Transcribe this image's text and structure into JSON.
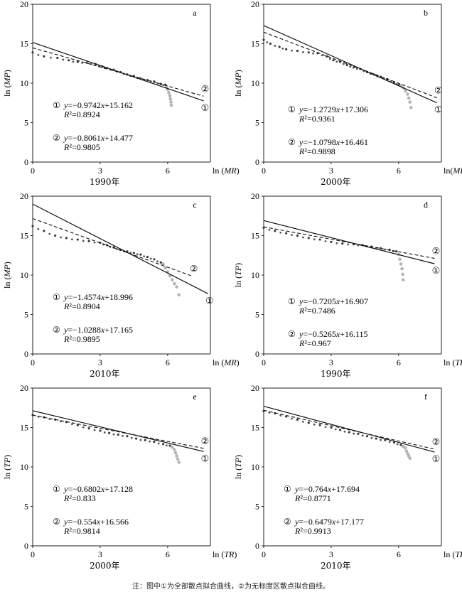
{
  "figure_note": "注：图中①为全部散点拟合曲线，②为无标度区散点拟合曲线。",
  "chart_data": [
    {
      "type": "scatter",
      "panel_label": "a",
      "year_label": "1990年",
      "xlabel": "ln (MR)",
      "ylabel": "ln (MP)",
      "xlim": [
        0,
        7.9
      ],
      "ylim": [
        0,
        20
      ],
      "x_ticks": [
        "0",
        "3",
        "6"
      ],
      "y_ticks": [
        "0",
        "5",
        "10",
        "15",
        "20"
      ],
      "series": [
        {
          "marker": "①",
          "style": "solid",
          "slope": -0.9742,
          "intercept": 15.162,
          "x_range": [
            0,
            7.6
          ]
        },
        {
          "marker": "②",
          "style": "dashed",
          "slope": -0.8061,
          "intercept": 14.477,
          "x_range": [
            0,
            7.6
          ]
        }
      ],
      "equations": [
        {
          "id": "①",
          "eq": "y=−0.9742x+15.162",
          "r2": "R²=0.8924"
        },
        {
          "id": "②",
          "eq": "y=−0.8061x+14.477",
          "r2": "R²=0.9805"
        }
      ],
      "dark_scatter": [
        [
          0.0,
          13.9
        ],
        [
          0.5,
          13.4
        ],
        [
          1.1,
          13.2
        ],
        [
          1.6,
          12.9
        ],
        [
          2.0,
          12.7
        ],
        [
          2.4,
          12.6
        ],
        [
          2.8,
          12.4
        ],
        [
          3.1,
          12.1
        ],
        [
          3.3,
          11.9
        ],
        [
          3.6,
          11.7
        ],
        [
          3.9,
          11.4
        ],
        [
          4.2,
          11.1
        ],
        [
          4.5,
          10.9
        ],
        [
          4.8,
          10.6
        ],
        [
          5.1,
          10.4
        ],
        [
          5.4,
          10.2
        ],
        [
          5.7,
          9.9
        ],
        [
          5.9,
          9.8
        ]
      ],
      "light_scatter": [
        [
          5.95,
          9.5
        ],
        [
          6.0,
          9.2
        ],
        [
          6.05,
          8.8
        ],
        [
          6.1,
          8.4
        ],
        [
          6.12,
          8.0
        ],
        [
          6.15,
          7.6
        ],
        [
          6.16,
          7.2
        ]
      ]
    },
    {
      "type": "scatter",
      "panel_label": "b",
      "year_label": "2000年",
      "xlabel": "ln( MR)",
      "ylabel": "ln (MP)",
      "xlim": [
        0,
        7.9
      ],
      "ylim": [
        0,
        20
      ],
      "x_ticks": [
        "0",
        "3",
        "6"
      ],
      "y_ticks": [
        "0",
        "5",
        "10",
        "15",
        "20"
      ],
      "series": [
        {
          "marker": "①",
          "style": "solid",
          "slope": -1.2729,
          "intercept": 17.306,
          "x_range": [
            0,
            7.7
          ]
        },
        {
          "marker": "②",
          "style": "dashed",
          "slope": -1.0798,
          "intercept": 16.461,
          "x_range": [
            0,
            7.7
          ]
        }
      ],
      "equations": [
        {
          "id": "①",
          "eq": "y=−1.2729x+17.306",
          "r2": "R²=0.9361"
        },
        {
          "id": "②",
          "eq": "y=−1.0798x+16.461",
          "r2": "R²=0.9898"
        }
      ],
      "dark_scatter": [
        [
          0.0,
          15.5
        ],
        [
          0.3,
          15.0
        ],
        [
          0.7,
          14.6
        ],
        [
          1.0,
          14.3
        ],
        [
          1.5,
          14.1
        ],
        [
          2.0,
          13.9
        ],
        [
          2.4,
          13.8
        ],
        [
          2.8,
          13.4
        ],
        [
          3.1,
          12.9
        ],
        [
          3.4,
          12.7
        ],
        [
          3.7,
          12.3
        ],
        [
          4.0,
          12.0
        ],
        [
          4.3,
          11.8
        ],
        [
          4.6,
          11.4
        ],
        [
          4.9,
          11.1
        ],
        [
          5.2,
          10.8
        ],
        [
          5.5,
          10.5
        ],
        [
          5.8,
          10.1
        ],
        [
          6.0,
          9.8
        ]
      ],
      "light_scatter": [
        [
          6.1,
          9.7
        ],
        [
          6.2,
          9.4
        ],
        [
          6.3,
          9.0
        ],
        [
          6.4,
          8.6
        ],
        [
          6.45,
          8.1
        ],
        [
          6.5,
          7.6
        ],
        [
          6.55,
          6.9
        ]
      ]
    },
    {
      "type": "scatter",
      "panel_label": "c",
      "year_label": "2010年",
      "xlabel": "ln (MR)",
      "ylabel": "ln (MP)",
      "xlim": [
        0,
        7.9
      ],
      "ylim": [
        0,
        20
      ],
      "x_ticks": [
        "0",
        "3",
        "6"
      ],
      "y_ticks": [
        "0",
        "5",
        "10",
        "15",
        "20"
      ],
      "series": [
        {
          "marker": "①",
          "style": "solid",
          "slope": -1.4574,
          "intercept": 18.996,
          "x_range": [
            0,
            7.8
          ]
        },
        {
          "marker": "②",
          "style": "dashed",
          "slope": -1.0288,
          "intercept": 17.165,
          "x_range": [
            0,
            7.1
          ]
        }
      ],
      "equations": [
        {
          "id": "①",
          "eq": "y=−1.4574x+18.996",
          "r2": "R²=0.8904"
        },
        {
          "id": "②",
          "eq": "y=−1.0288x+17.165",
          "r2": "R²=0.9895"
        }
      ],
      "dark_scatter": [
        [
          0.0,
          16.2
        ],
        [
          0.5,
          15.6
        ],
        [
          1.0,
          15.0
        ],
        [
          1.5,
          14.7
        ],
        [
          2.0,
          14.5
        ],
        [
          2.5,
          14.3
        ],
        [
          3.0,
          14.1
        ],
        [
          3.3,
          13.8
        ],
        [
          3.6,
          13.5
        ],
        [
          3.9,
          13.2
        ],
        [
          4.2,
          13.0
        ],
        [
          4.5,
          12.8
        ],
        [
          4.8,
          12.6
        ],
        [
          5.1,
          12.3
        ],
        [
          5.4,
          12.0
        ],
        [
          5.7,
          11.6
        ]
      ],
      "light_scatter": [
        [
          5.8,
          11.4
        ],
        [
          5.9,
          10.9
        ],
        [
          6.0,
          10.4
        ],
        [
          6.1,
          9.9
        ],
        [
          6.2,
          9.4
        ],
        [
          6.3,
          8.9
        ],
        [
          6.4,
          8.5
        ],
        [
          6.5,
          7.5
        ]
      ]
    },
    {
      "type": "scatter",
      "panel_label": "d",
      "year_label": "1990年",
      "xlabel": "ln (TR)",
      "ylabel": "ln (TP)",
      "xlim": [
        0,
        7.9
      ],
      "ylim": [
        0,
        20
      ],
      "x_ticks": [
        "0",
        "3",
        "6"
      ],
      "y_ticks": [
        "0",
        "5",
        "10",
        "15",
        "20"
      ],
      "series": [
        {
          "marker": "①",
          "style": "solid",
          "slope": -0.7205,
          "intercept": 16.907,
          "x_range": [
            0,
            7.6
          ]
        },
        {
          "marker": "②",
          "style": "dashed",
          "slope": -0.5265,
          "intercept": 16.115,
          "x_range": [
            0,
            7.6
          ]
        }
      ],
      "equations": [
        {
          "id": "①",
          "eq": "y=−0.7205x+16.907",
          "r2": "R²=0.7486"
        },
        {
          "id": "②",
          "eq": "y=−0.5265x+16.115",
          "r2": "R²=0.967"
        }
      ],
      "dark_scatter": [
        [
          0.0,
          16.0
        ],
        [
          0.5,
          15.6
        ],
        [
          1.0,
          15.3
        ],
        [
          1.5,
          15.0
        ],
        [
          2.0,
          14.7
        ],
        [
          2.5,
          14.5
        ],
        [
          3.0,
          14.2
        ],
        [
          3.5,
          14.0
        ],
        [
          4.0,
          13.9
        ],
        [
          4.4,
          13.8
        ],
        [
          4.8,
          13.6
        ],
        [
          5.2,
          13.4
        ],
        [
          5.6,
          13.2
        ],
        [
          5.9,
          13.0
        ]
      ],
      "light_scatter": [
        [
          6.0,
          12.6
        ],
        [
          6.05,
          12.0
        ],
        [
          6.1,
          11.4
        ],
        [
          6.15,
          10.8
        ],
        [
          6.18,
          10.1
        ],
        [
          6.2,
          9.4
        ]
      ]
    },
    {
      "type": "scatter",
      "panel_label": "e",
      "year_label": "2000年",
      "xlabel": "ln (TR)",
      "ylabel": "ln (TP)",
      "xlim": [
        0,
        7.9
      ],
      "ylim": [
        0,
        20
      ],
      "x_ticks": [
        "0",
        "3",
        "6"
      ],
      "y_ticks": [
        "0",
        "5",
        "10",
        "15",
        "20"
      ],
      "series": [
        {
          "marker": "①",
          "style": "solid",
          "slope": -0.6802,
          "intercept": 17.128,
          "x_range": [
            0,
            7.6
          ]
        },
        {
          "marker": "②",
          "style": "dashed",
          "slope": -0.554,
          "intercept": 16.566,
          "x_range": [
            0,
            7.6
          ]
        }
      ],
      "equations": [
        {
          "id": "①",
          "eq": "y=−0.6802x+17.128",
          "r2": "R²=0.833"
        },
        {
          "id": "②",
          "eq": "y=−0.554x+16.566",
          "r2": "R²=0.9814"
        }
      ],
      "dark_scatter": [
        [
          0.0,
          16.6
        ],
        [
          0.5,
          16.3
        ],
        [
          1.0,
          16.0
        ],
        [
          1.5,
          15.7
        ],
        [
          2.0,
          15.3
        ],
        [
          2.5,
          14.9
        ],
        [
          3.0,
          14.6
        ],
        [
          3.4,
          14.3
        ],
        [
          3.8,
          14.1
        ],
        [
          4.2,
          13.9
        ],
        [
          4.6,
          13.6
        ],
        [
          5.0,
          13.4
        ],
        [
          5.4,
          13.2
        ],
        [
          5.8,
          12.9
        ],
        [
          6.1,
          12.7
        ]
      ],
      "light_scatter": [
        [
          6.2,
          12.5
        ],
        [
          6.3,
          12.2
        ],
        [
          6.35,
          11.8
        ],
        [
          6.4,
          11.4
        ],
        [
          6.45,
          11.0
        ],
        [
          6.5,
          10.6
        ]
      ]
    },
    {
      "type": "scatter",
      "panel_label": "f",
      "year_label": "2010年",
      "xlabel": "ln (TR)",
      "ylabel": "ln (TP)",
      "xlim": [
        0,
        7.9
      ],
      "ylim": [
        0,
        20
      ],
      "x_ticks": [
        "0",
        "3",
        "6"
      ],
      "y_ticks": [
        "0",
        "5",
        "10",
        "15",
        "20"
      ],
      "series": [
        {
          "marker": "①",
          "style": "solid",
          "slope": -0.764,
          "intercept": 17.694,
          "x_range": [
            0,
            7.6
          ]
        },
        {
          "marker": "②",
          "style": "dashed",
          "slope": -0.6479,
          "intercept": 17.177,
          "x_range": [
            0,
            7.6
          ]
        }
      ],
      "equations": [
        {
          "id": "①",
          "eq": "y=−0.764x+17.694",
          "r2": "R²=0.8771"
        },
        {
          "id": "②",
          "eq": "y=−0.6479x+17.177",
          "r2": "R²=0.9913"
        }
      ],
      "dark_scatter": [
        [
          0.0,
          17.1
        ],
        [
          0.5,
          16.8
        ],
        [
          1.0,
          16.4
        ],
        [
          1.5,
          16.0
        ],
        [
          2.0,
          15.6
        ],
        [
          2.5,
          15.3
        ],
        [
          3.0,
          15.0
        ],
        [
          3.4,
          14.7
        ],
        [
          3.8,
          14.4
        ],
        [
          4.2,
          14.2
        ],
        [
          4.6,
          13.9
        ],
        [
          5.0,
          13.6
        ],
        [
          5.4,
          13.4
        ],
        [
          5.8,
          13.1
        ],
        [
          6.1,
          12.8
        ]
      ],
      "light_scatter": [
        [
          6.2,
          12.6
        ],
        [
          6.3,
          12.4
        ],
        [
          6.35,
          12.0
        ],
        [
          6.4,
          11.7
        ],
        [
          6.45,
          11.4
        ],
        [
          6.5,
          11.1
        ]
      ]
    }
  ]
}
